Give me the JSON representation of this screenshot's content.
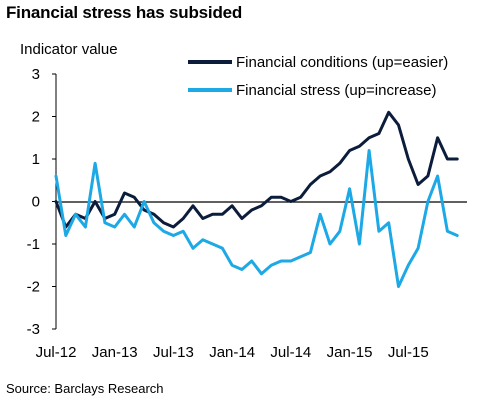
{
  "chart_data": {
    "type": "line",
    "title": "Financial stress has subsided",
    "ylabel": "Indicator value",
    "xlabel": "",
    "source": "Source: Barclays Research",
    "ylim": [
      -3,
      3
    ],
    "yticks": [
      "3",
      "2",
      "1",
      "0",
      "-1",
      "-2",
      "-3"
    ],
    "xlim": [
      "2012-07",
      "2016-01"
    ],
    "xticks": [
      "Jul-12",
      "Jan-13",
      "Jul-13",
      "Jan-14",
      "Jul-14",
      "Jan-15",
      "Jul-15"
    ],
    "legend_position": "top-right",
    "series": [
      {
        "name": "Financial conditions (up=easier)",
        "color": "#0c1d3c",
        "x": [
          "2012-07",
          "2012-08",
          "2012-09",
          "2012-10",
          "2012-11",
          "2012-12",
          "2013-01",
          "2013-02",
          "2013-03",
          "2013-04",
          "2013-05",
          "2013-06",
          "2013-07",
          "2013-08",
          "2013-09",
          "2013-10",
          "2013-11",
          "2013-12",
          "2014-01",
          "2014-02",
          "2014-03",
          "2014-04",
          "2014-05",
          "2014-06",
          "2014-07",
          "2014-08",
          "2014-09",
          "2014-10",
          "2014-11",
          "2014-12",
          "2015-01",
          "2015-02",
          "2015-03",
          "2015-04",
          "2015-05",
          "2015-06",
          "2015-07",
          "2015-08",
          "2015-09",
          "2015-10",
          "2015-11",
          "2015-12"
        ],
        "values": [
          0.0,
          -0.6,
          -0.3,
          -0.4,
          0.0,
          -0.4,
          -0.3,
          0.2,
          0.1,
          -0.2,
          -0.3,
          -0.5,
          -0.6,
          -0.4,
          -0.1,
          -0.4,
          -0.3,
          -0.3,
          -0.1,
          -0.4,
          -0.2,
          -0.1,
          0.1,
          0.1,
          0.0,
          0.1,
          0.4,
          0.6,
          0.7,
          0.9,
          1.2,
          1.3,
          1.5,
          1.6,
          2.1,
          1.8,
          1.0,
          0.4,
          0.6,
          1.5,
          1.0,
          1.0
        ]
      },
      {
        "name": "Financial stress (up=increase)",
        "color": "#1da8e6",
        "x": [
          "2012-07",
          "2012-08",
          "2012-09",
          "2012-10",
          "2012-11",
          "2012-12",
          "2013-01",
          "2013-02",
          "2013-03",
          "2013-04",
          "2013-05",
          "2013-06",
          "2013-07",
          "2013-08",
          "2013-09",
          "2013-10",
          "2013-11",
          "2013-12",
          "2014-01",
          "2014-02",
          "2014-03",
          "2014-04",
          "2014-05",
          "2014-06",
          "2014-07",
          "2014-08",
          "2014-09",
          "2014-10",
          "2014-11",
          "2014-12",
          "2015-01",
          "2015-02",
          "2015-03",
          "2015-04",
          "2015-05",
          "2015-06",
          "2015-07",
          "2015-08",
          "2015-09",
          "2015-10",
          "2015-11",
          "2015-12"
        ],
        "values": [
          0.6,
          -0.8,
          -0.3,
          -0.6,
          0.9,
          -0.5,
          -0.6,
          -0.3,
          -0.6,
          0.0,
          -0.5,
          -0.7,
          -0.8,
          -0.7,
          -1.1,
          -0.9,
          -1.0,
          -1.1,
          -1.5,
          -1.6,
          -1.4,
          -1.7,
          -1.5,
          -1.4,
          -1.4,
          -1.3,
          -1.2,
          -0.3,
          -1.0,
          -0.7,
          0.3,
          -1.0,
          1.2,
          -0.7,
          -0.5,
          -2.0,
          -1.5,
          -1.1,
          0.0,
          0.6,
          -0.7,
          -0.8
        ]
      }
    ]
  }
}
